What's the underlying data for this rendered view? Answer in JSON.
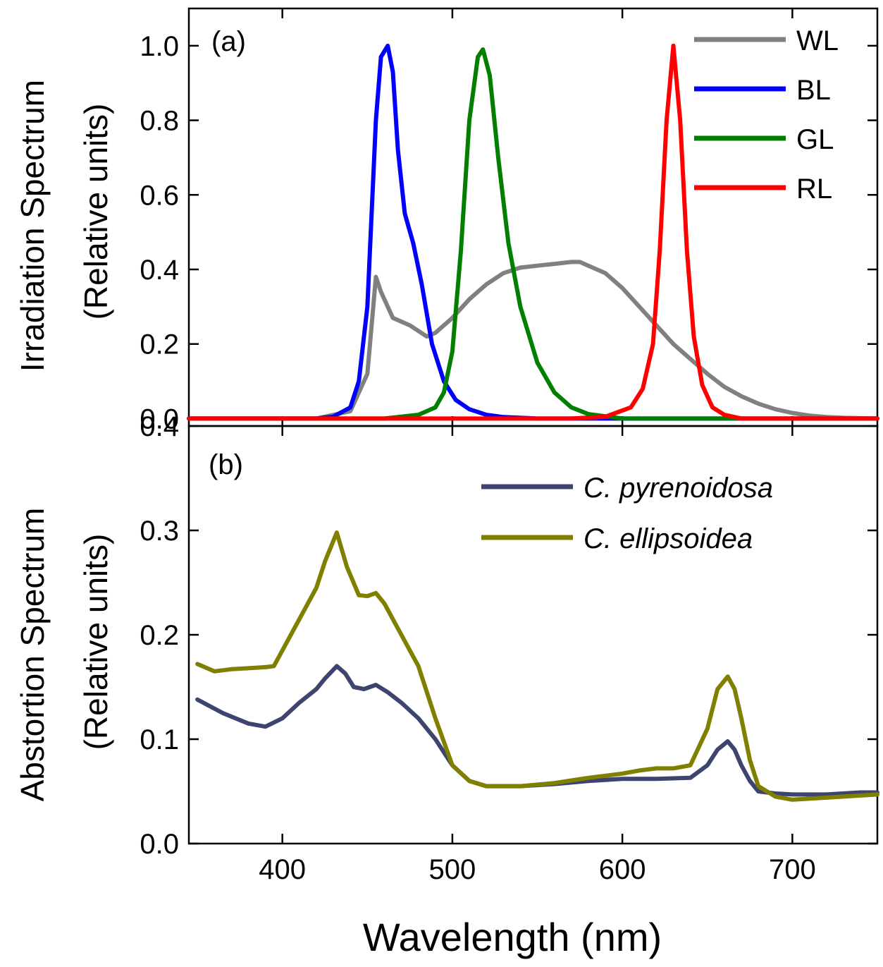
{
  "chart_data": [
    {
      "type": "line",
      "panel_label": "(a)",
      "ylabel_line1": "Irradiation Spectrum",
      "ylabel_line2": "(Relative units)",
      "xlim": [
        345,
        750
      ],
      "ylim": [
        -0.02,
        1.1
      ],
      "yticks": [
        0.0,
        0.2,
        0.4,
        0.6,
        0.8,
        1.0
      ],
      "ytick_labels": [
        "0.0",
        "0.2",
        "0.4",
        "0.6",
        "0.8",
        "1.0"
      ],
      "legend_position": "top-right",
      "series": [
        {
          "name": "WL",
          "color": "#808080",
          "x": [
            345,
            420,
            440,
            450,
            455,
            458,
            465,
            475,
            485,
            490,
            500,
            510,
            520,
            530,
            540,
            550,
            560,
            570,
            575,
            580,
            590,
            600,
            610,
            620,
            630,
            640,
            650,
            660,
            670,
            680,
            690,
            700,
            710,
            720,
            730,
            740,
            750
          ],
          "y": [
            0,
            0,
            0.02,
            0.12,
            0.38,
            0.34,
            0.27,
            0.25,
            0.22,
            0.23,
            0.27,
            0.32,
            0.36,
            0.39,
            0.405,
            0.41,
            0.415,
            0.42,
            0.42,
            0.41,
            0.39,
            0.35,
            0.3,
            0.25,
            0.2,
            0.16,
            0.12,
            0.085,
            0.06,
            0.04,
            0.025,
            0.015,
            0.008,
            0.004,
            0.002,
            0.001,
            0
          ]
        },
        {
          "name": "BL",
          "color": "#0000ff",
          "x": [
            345,
            420,
            430,
            440,
            445,
            450,
            455,
            458,
            462,
            465,
            468,
            472,
            477,
            482,
            488,
            495,
            502,
            510,
            520,
            530,
            550,
            750
          ],
          "y": [
            0,
            0,
            0.005,
            0.03,
            0.1,
            0.3,
            0.8,
            0.97,
            1.0,
            0.93,
            0.72,
            0.55,
            0.47,
            0.36,
            0.2,
            0.1,
            0.05,
            0.025,
            0.01,
            0.004,
            0,
            0
          ]
        },
        {
          "name": "GL",
          "color": "#007f00",
          "x": [
            345,
            460,
            480,
            490,
            495,
            500,
            505,
            510,
            515,
            518,
            522,
            527,
            533,
            540,
            550,
            560,
            570,
            580,
            600,
            750
          ],
          "y": [
            0,
            0,
            0.01,
            0.03,
            0.07,
            0.18,
            0.45,
            0.8,
            0.97,
            0.99,
            0.92,
            0.7,
            0.47,
            0.3,
            0.15,
            0.07,
            0.03,
            0.012,
            0,
            0
          ]
        },
        {
          "name": "RL",
          "color": "#ff0000",
          "x": [
            345,
            570,
            590,
            605,
            612,
            618,
            622,
            626,
            630,
            634,
            638,
            642,
            647,
            653,
            660,
            670,
            750
          ],
          "y": [
            0,
            0,
            0.005,
            0.03,
            0.08,
            0.2,
            0.45,
            0.8,
            1.0,
            0.8,
            0.45,
            0.22,
            0.09,
            0.03,
            0.01,
            0,
            0
          ]
        }
      ]
    },
    {
      "type": "line",
      "panel_label": "(b)",
      "ylabel_line1": "Abstortion Spectrum",
      "ylabel_line2": "(Relative units)",
      "xlabel": "Wavelength (nm)",
      "xlim": [
        345,
        750
      ],
      "ylim": [
        0,
        0.4
      ],
      "xticks": [
        400,
        500,
        600,
        700
      ],
      "xtick_labels": [
        "400",
        "500",
        "600",
        "700"
      ],
      "yticks": [
        0.0,
        0.1,
        0.2,
        0.3,
        0.4
      ],
      "ytick_labels": [
        "0.0",
        "0.1",
        "0.2",
        "0.3",
        "0.4"
      ],
      "legend_position": "top-right",
      "series": [
        {
          "name": "C. pyrenoidosa",
          "color": "#3d4470",
          "x": [
            350,
            365,
            380,
            390,
            400,
            410,
            420,
            425,
            432,
            437,
            442,
            448,
            455,
            462,
            470,
            480,
            490,
            500,
            510,
            520,
            540,
            560,
            580,
            600,
            620,
            640,
            650,
            656,
            662,
            666,
            670,
            675,
            680,
            690,
            700,
            720,
            740,
            750
          ],
          "y": [
            0.138,
            0.125,
            0.115,
            0.112,
            0.12,
            0.135,
            0.148,
            0.158,
            0.17,
            0.163,
            0.15,
            0.148,
            0.152,
            0.145,
            0.135,
            0.12,
            0.1,
            0.075,
            0.06,
            0.055,
            0.055,
            0.057,
            0.06,
            0.062,
            0.062,
            0.063,
            0.075,
            0.09,
            0.098,
            0.09,
            0.075,
            0.06,
            0.05,
            0.048,
            0.047,
            0.047,
            0.049,
            0.049
          ]
        },
        {
          "name": "C. ellipsoidea",
          "color": "#808000",
          "x": [
            350,
            360,
            370,
            380,
            390,
            395,
            400,
            410,
            420,
            425,
            432,
            438,
            445,
            450,
            455,
            460,
            470,
            480,
            490,
            500,
            510,
            520,
            540,
            560,
            580,
            600,
            610,
            620,
            630,
            640,
            650,
            656,
            662,
            666,
            670,
            675,
            680,
            690,
            700,
            720,
            740,
            750
          ],
          "y": [
            0.172,
            0.165,
            0.167,
            0.168,
            0.169,
            0.17,
            0.185,
            0.215,
            0.245,
            0.27,
            0.298,
            0.265,
            0.238,
            0.237,
            0.24,
            0.23,
            0.2,
            0.17,
            0.12,
            0.075,
            0.06,
            0.055,
            0.055,
            0.058,
            0.063,
            0.067,
            0.07,
            0.072,
            0.072,
            0.075,
            0.11,
            0.148,
            0.16,
            0.148,
            0.12,
            0.08,
            0.055,
            0.045,
            0.042,
            0.044,
            0.046,
            0.047
          ]
        }
      ]
    }
  ]
}
